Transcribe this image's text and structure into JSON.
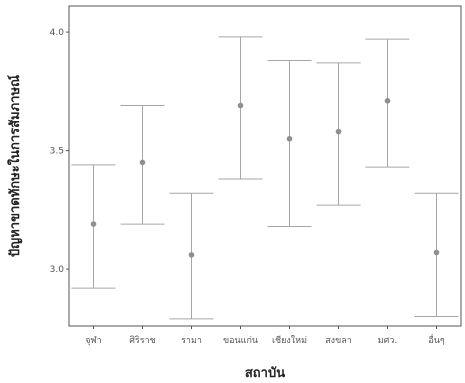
{
  "chart_data": {
    "type": "errorbar",
    "xlabel": "สถาบัน",
    "ylabel": "ปัญหาขาดทักษะในการสัมภาษณ์",
    "ylim": [
      2.76,
      4.11
    ],
    "yticks": [
      3.0,
      3.5,
      4.0
    ],
    "ytick_labels": [
      "3.0",
      "3.5",
      "4.0"
    ],
    "grid": false,
    "categories": [
      "จุฬา",
      "ศิริราช",
      "รามา",
      "ขอนแก่น",
      "เชียงใหม่",
      "สงขลา",
      "มศว.",
      "อื่นๆ"
    ],
    "mean": [
      3.19,
      3.45,
      3.06,
      3.69,
      3.55,
      3.58,
      3.71,
      3.07
    ],
    "lower": [
      2.92,
      3.19,
      2.79,
      3.38,
      3.18,
      3.27,
      3.43,
      2.8
    ],
    "upper": [
      3.44,
      3.69,
      3.32,
      3.98,
      3.88,
      3.87,
      3.97,
      3.32
    ],
    "colors": {
      "errorbar": "#a6a6a6",
      "point": "#8f8f8f",
      "axis": "#555555"
    }
  }
}
